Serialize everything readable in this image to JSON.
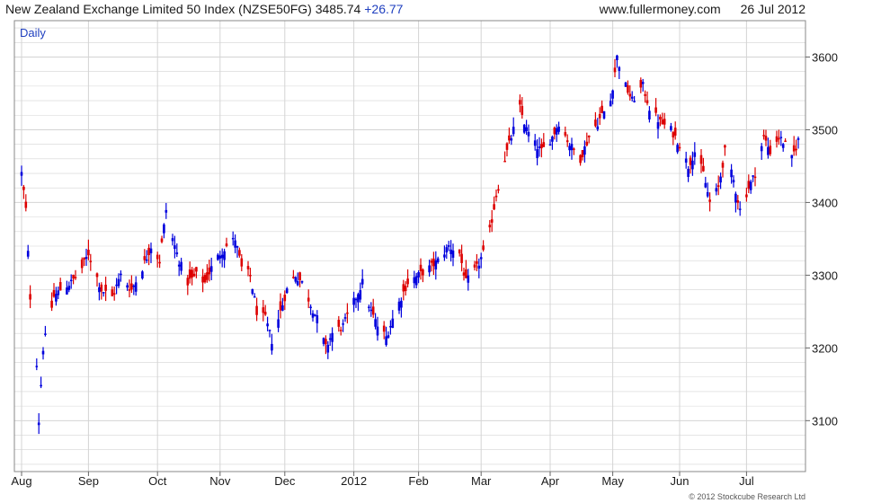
{
  "header": {
    "instrument": "New Zealand Exchange Limited 50 Index (NZSE50FG)",
    "last": "3485.74",
    "change": "+26.77",
    "site": "www.fullermoney.com",
    "date": "26 Jul 2012"
  },
  "period": "Daily",
  "copyright": "© 2012 Stockcube Research Ltd",
  "colors": {
    "up": "#0000dd",
    "down": "#dd0000",
    "grid": "#d4d4d4",
    "frame": "#888888",
    "change": "#1f3fbf"
  },
  "chart_data": {
    "type": "ohlc",
    "y_axis": {
      "position": "right",
      "ylim": [
        3030,
        3650
      ],
      "ticks": [
        3100,
        3200,
        3300,
        3400,
        3500,
        3600
      ]
    },
    "x_axis": {
      "categories_start": "2011-08-01",
      "categories_end": "2012-07-26",
      "tick_labels": [
        "Aug",
        "Sep",
        "Oct",
        "Nov",
        "Dec",
        "2012",
        "Feb",
        "Mar",
        "Apr",
        "May",
        "Jun",
        "Jul"
      ],
      "tick_dates": [
        "2011-08-01",
        "2011-09-01",
        "2011-10-03",
        "2011-11-01",
        "2011-12-01",
        "2012-01-02",
        "2012-02-01",
        "2012-03-01",
        "2012-04-02",
        "2012-05-01",
        "2012-06-01",
        "2012-07-02"
      ]
    },
    "grid": true,
    "legend": "none",
    "closes": [
      {
        "date": "2011-08-01",
        "close": 3440
      },
      {
        "date": "2011-08-03",
        "close": 3390
      },
      {
        "date": "2011-08-05",
        "close": 3270
      },
      {
        "date": "2011-08-08",
        "close": 3180
      },
      {
        "date": "2011-08-09",
        "close": 3100
      },
      {
        "date": "2011-08-11",
        "close": 3200
      },
      {
        "date": "2011-08-16",
        "close": 3270
      },
      {
        "date": "2011-08-19",
        "close": 3280
      },
      {
        "date": "2011-08-24",
        "close": 3290
      },
      {
        "date": "2011-08-29",
        "close": 3310
      },
      {
        "date": "2011-09-01",
        "close": 3330
      },
      {
        "date": "2011-09-07",
        "close": 3280
      },
      {
        "date": "2011-09-12",
        "close": 3270
      },
      {
        "date": "2011-09-16",
        "close": 3300
      },
      {
        "date": "2011-09-21",
        "close": 3280
      },
      {
        "date": "2011-09-26",
        "close": 3310
      },
      {
        "date": "2011-09-30",
        "close": 3340
      },
      {
        "date": "2011-10-04",
        "close": 3320
      },
      {
        "date": "2011-10-07",
        "close": 3390
      },
      {
        "date": "2011-10-10",
        "close": 3350
      },
      {
        "date": "2011-10-13",
        "close": 3320
      },
      {
        "date": "2011-10-17",
        "close": 3290
      },
      {
        "date": "2011-10-21",
        "close": 3300
      },
      {
        "date": "2011-10-25",
        "close": 3290
      },
      {
        "date": "2011-10-28",
        "close": 3310
      },
      {
        "date": "2011-11-01",
        "close": 3330
      },
      {
        "date": "2011-11-04",
        "close": 3340
      },
      {
        "date": "2011-11-08",
        "close": 3350
      },
      {
        "date": "2011-11-11",
        "close": 3310
      },
      {
        "date": "2011-11-15",
        "close": 3300
      },
      {
        "date": "2011-11-18",
        "close": 3250
      },
      {
        "date": "2011-11-22",
        "close": 3240
      },
      {
        "date": "2011-11-25",
        "close": 3210
      },
      {
        "date": "2011-11-29",
        "close": 3250
      },
      {
        "date": "2011-12-02",
        "close": 3280
      },
      {
        "date": "2011-12-06",
        "close": 3300
      },
      {
        "date": "2011-12-09",
        "close": 3290
      },
      {
        "date": "2011-12-13",
        "close": 3260
      },
      {
        "date": "2011-12-16",
        "close": 3240
      },
      {
        "date": "2011-12-20",
        "close": 3200
      },
      {
        "date": "2011-12-23",
        "close": 3220
      },
      {
        "date": "2011-12-28",
        "close": 3230
      },
      {
        "date": "2012-01-03",
        "close": 3270
      },
      {
        "date": "2012-01-06",
        "close": 3290
      },
      {
        "date": "2012-01-10",
        "close": 3250
      },
      {
        "date": "2012-01-13",
        "close": 3230
      },
      {
        "date": "2012-01-17",
        "close": 3215
      },
      {
        "date": "2012-01-20",
        "close": 3240
      },
      {
        "date": "2012-01-24",
        "close": 3270
      },
      {
        "date": "2012-01-27",
        "close": 3290
      },
      {
        "date": "2012-02-01",
        "close": 3300
      },
      {
        "date": "2012-02-06",
        "close": 3310
      },
      {
        "date": "2012-02-10",
        "close": 3320
      },
      {
        "date": "2012-02-15",
        "close": 3340
      },
      {
        "date": "2012-02-20",
        "close": 3330
      },
      {
        "date": "2012-02-23",
        "close": 3290
      },
      {
        "date": "2012-02-28",
        "close": 3310
      },
      {
        "date": "2012-03-02",
        "close": 3330
      },
      {
        "date": "2012-03-05",
        "close": 3360
      },
      {
        "date": "2012-03-08",
        "close": 3410
      },
      {
        "date": "2012-03-12",
        "close": 3460
      },
      {
        "date": "2012-03-15",
        "close": 3490
      },
      {
        "date": "2012-03-19",
        "close": 3530
      },
      {
        "date": "2012-03-22",
        "close": 3500
      },
      {
        "date": "2012-03-26",
        "close": 3480
      },
      {
        "date": "2012-03-29",
        "close": 3470
      },
      {
        "date": "2012-04-03",
        "close": 3490
      },
      {
        "date": "2012-04-06",
        "close": 3510
      },
      {
        "date": "2012-04-11",
        "close": 3480
      },
      {
        "date": "2012-04-16",
        "close": 3460
      },
      {
        "date": "2012-04-20",
        "close": 3490
      },
      {
        "date": "2012-04-26",
        "close": 3520
      },
      {
        "date": "2012-04-30",
        "close": 3540
      },
      {
        "date": "2012-05-03",
        "close": 3600
      },
      {
        "date": "2012-05-07",
        "close": 3560
      },
      {
        "date": "2012-05-10",
        "close": 3540
      },
      {
        "date": "2012-05-15",
        "close": 3560
      },
      {
        "date": "2012-05-18",
        "close": 3530
      },
      {
        "date": "2012-05-23",
        "close": 3510
      },
      {
        "date": "2012-05-28",
        "close": 3500
      },
      {
        "date": "2012-06-01",
        "close": 3480
      },
      {
        "date": "2012-06-05",
        "close": 3450
      },
      {
        "date": "2012-06-08",
        "close": 3470
      },
      {
        "date": "2012-06-12",
        "close": 3440
      },
      {
        "date": "2012-06-15",
        "close": 3400
      },
      {
        "date": "2012-06-19",
        "close": 3420
      },
      {
        "date": "2012-06-22",
        "close": 3470
      },
      {
        "date": "2012-06-26",
        "close": 3430
      },
      {
        "date": "2012-06-29",
        "close": 3390
      },
      {
        "date": "2012-07-03",
        "close": 3420
      },
      {
        "date": "2012-07-06",
        "close": 3440
      },
      {
        "date": "2012-07-10",
        "close": 3490
      },
      {
        "date": "2012-07-13",
        "close": 3470
      },
      {
        "date": "2012-07-17",
        "close": 3490
      },
      {
        "date": "2012-07-20",
        "close": 3480
      },
      {
        "date": "2012-07-23",
        "close": 3460
      },
      {
        "date": "2012-07-26",
        "close": 3485.74
      }
    ]
  }
}
